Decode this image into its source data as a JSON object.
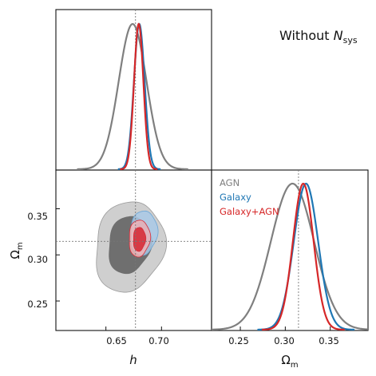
{
  "annotation": {
    "main": "Without ",
    "symbol": "N",
    "sub": "sys"
  },
  "labels": {
    "h": "h",
    "omega": "Ω",
    "omega_sub": "m"
  },
  "colors": {
    "AGN": "#7f7f7f",
    "Galaxy": "#1f77b4",
    "Galaxy+AGN": "#d62728",
    "truth_line": "#777777"
  },
  "chart_data": [
    {
      "panel": "h-marginal",
      "type": "line",
      "xlim": [
        0.605,
        0.745
      ],
      "truth_x": 0.6766,
      "series": [
        {
          "name": "AGN",
          "mean": 0.674,
          "sigma": 0.0125
        },
        {
          "name": "Galaxy",
          "mean": 0.68,
          "sigma": 0.0048
        },
        {
          "name": "Galaxy+AGN",
          "mean": 0.6795,
          "sigma": 0.0042
        }
      ]
    },
    {
      "panel": "h-Omega_m",
      "type": "scatter",
      "xlabel": "h",
      "ylabel": "Ωm",
      "xlim": [
        0.605,
        0.745
      ],
      "ylim": [
        0.218,
        0.392
      ],
      "xticks": [
        0.65,
        0.7
      ],
      "xtick_labels": [
        "0.65",
        "0.70"
      ],
      "yticks": [
        0.25,
        0.3,
        0.35
      ],
      "ytick_labels": [
        "0.25",
        "0.30",
        "0.35"
      ],
      "truth": {
        "h": 0.6766,
        "Omega_m": 0.3147
      },
      "contours": [
        {
          "name": "AGN",
          "level": "95%",
          "center": [
            0.671,
            0.309
          ],
          "radii": [
            0.031,
            0.049
          ],
          "tilt": 1.35
        },
        {
          "name": "AGN",
          "level": "68%",
          "center": [
            0.671,
            0.311
          ],
          "radii": [
            0.019,
            0.031
          ],
          "tilt": 1.35
        },
        {
          "name": "Galaxy",
          "level": "95%",
          "center": [
            0.684,
            0.324
          ],
          "radii": [
            0.012,
            0.024
          ],
          "tilt": 1.2
        },
        {
          "name": "Galaxy",
          "level": "68%",
          "center": [
            0.682,
            0.321
          ],
          "radii": [
            0.007,
            0.015
          ],
          "tilt": 1.2
        },
        {
          "name": "Galaxy+AGN",
          "level": "95%",
          "center": [
            0.68,
            0.318
          ],
          "radii": [
            0.0095,
            0.02
          ],
          "tilt": 1.2
        },
        {
          "name": "Galaxy+AGN",
          "level": "68%",
          "center": [
            0.68,
            0.317
          ],
          "radii": [
            0.0055,
            0.013
          ],
          "tilt": 1.2
        }
      ]
    },
    {
      "panel": "Omega_m-marginal",
      "type": "line",
      "xlabel": "Ωm",
      "xlim": [
        0.218,
        0.392
      ],
      "xticks": [
        0.25,
        0.3,
        0.35
      ],
      "xtick_labels": [
        "0.25",
        "0.30",
        "0.35"
      ],
      "truth_x": 0.3147,
      "legend": [
        "AGN",
        "Galaxy",
        "Galaxy+AGN"
      ],
      "series": [
        {
          "name": "AGN",
          "mean": 0.308,
          "sigma": 0.024
        },
        {
          "name": "Galaxy",
          "mean": 0.323,
          "sigma": 0.0135
        },
        {
          "name": "Galaxy+AGN",
          "mean": 0.32,
          "sigma": 0.0115
        }
      ]
    }
  ]
}
